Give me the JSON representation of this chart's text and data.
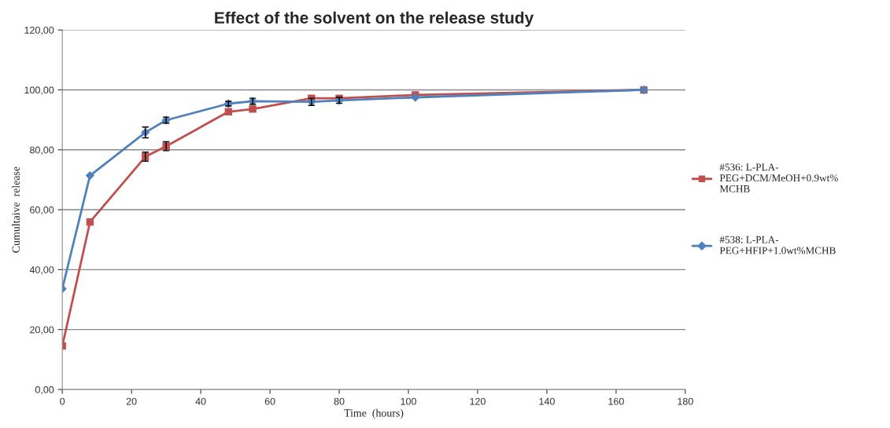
{
  "chart_data": {
    "type": "line",
    "title": "Effect of the solvent on the release study",
    "xlabel": "Time  (hours)",
    "ylabel": "Cumultaive  release",
    "x": [
      0,
      8,
      24,
      30,
      48,
      55,
      72,
      80,
      102,
      168
    ],
    "series": [
      {
        "name": "#536: L-PLA-PEG+DCM/MeOH+0.9wt% MCHB",
        "color": "#c0504d",
        "marker": "square",
        "values": [
          14.5,
          55.9,
          77.7,
          81.2,
          92.7,
          93.6,
          97.2,
          97.2,
          98.3,
          100
        ],
        "errors": [
          null,
          null,
          1.5,
          1.5,
          null,
          null,
          null,
          null,
          null,
          null
        ]
      },
      {
        "name": "#538: L-PLA-PEG+HFIP+1.0wt%MCHB",
        "color": "#4f81bd",
        "marker": "diamond",
        "values": [
          33.6,
          71.4,
          85.8,
          89.9,
          95.4,
          96.2,
          96.0,
          96.5,
          97.5,
          100
        ],
        "errors": [
          null,
          null,
          1.8,
          1.0,
          0.8,
          1.0,
          1.2,
          1.0,
          null,
          null
        ]
      }
    ],
    "xlim": [
      0,
      180
    ],
    "xticks": [
      0,
      20,
      40,
      60,
      80,
      100,
      120,
      140,
      160,
      180
    ],
    "ylim": [
      0,
      120
    ],
    "yticks": [
      {
        "value": 0,
        "label": "0,00"
      },
      {
        "value": 20,
        "label": "20,00"
      },
      {
        "value": 40,
        "label": "40,00"
      },
      {
        "value": 60,
        "label": "60,00"
      },
      {
        "value": 80,
        "label": "80,00"
      },
      {
        "value": 100,
        "label": "100,00"
      },
      {
        "value": 120,
        "label": "120,00"
      }
    ],
    "grid": "y",
    "legend": "right",
    "line_style": "solid"
  }
}
